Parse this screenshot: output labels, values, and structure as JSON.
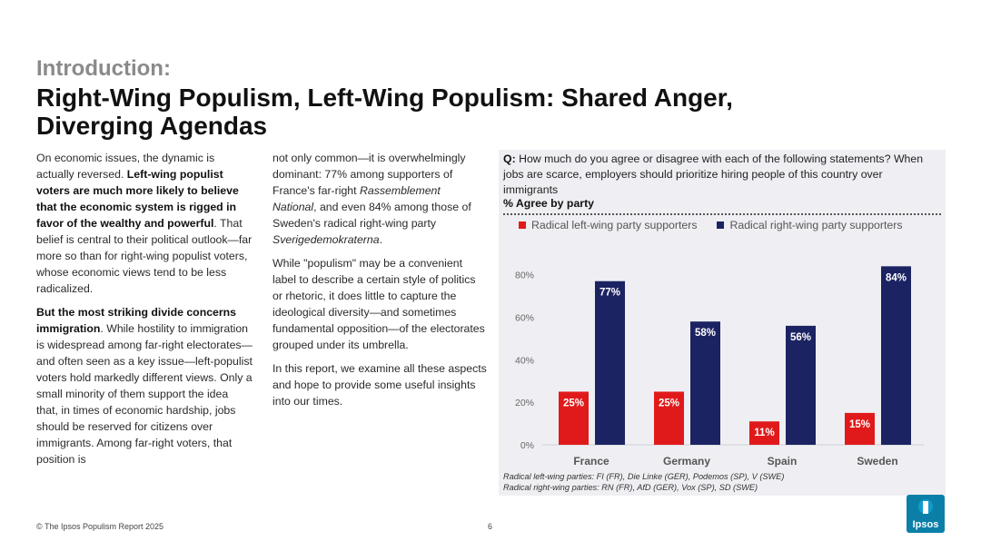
{
  "header": {
    "kicker": "Introduction:",
    "title": "Right-Wing Populism, Left-Wing Populism: Shared Anger, Diverging Agendas"
  },
  "body": {
    "c1p1_a": "On economic issues, the dynamic is actually reversed. ",
    "c1p1_b": "Left-wing populist voters are much more likely to believe that the economic system is rigged in favor of the wealthy and powerful",
    "c1p1_c": ". That belief is central to their political outlook—far more so than for right-wing populist voters, whose economic views tend to be less radicalized.",
    "c1p2_a": "But the most striking divide concerns immigration",
    "c1p2_b": ". While hostility to immigration is widespread among far-right electorates—and often seen as a key issue—left-populist voters hold markedly different views. Only a small minority of them support the idea that, in times of economic hardship, jobs should be reserved for citizens over immigrants. Among far-right voters, that position is",
    "c2p1_a": "not only common—it is overwhelmingly dominant: 77% among supporters of France's far-right ",
    "c2p1_b": "Rassemblement National",
    "c2p1_c": ", and even 84% among those of Sweden's radical right-wing party ",
    "c2p1_d": "Sverigedemokraterna",
    "c2p1_e": ".",
    "c2p2": "While \"populism\" may be a convenient label to describe a certain style of politics or rhetoric, it does little to capture the ideological diversity—and sometimes fundamental opposition—of the electorates grouped under its umbrella.",
    "c2p3": "In this report, we examine all these aspects and hope to provide some useful insights into our times."
  },
  "panel": {
    "q_prefix": "Q:",
    "question": " How much do you agree or disagree with each of the following statements? When jobs are scarce, employers should prioritize hiring people of this country over immigrants",
    "subtitle": "% Agree by party",
    "note1": "Radical left-wing parties: FI (FR), Die Linke (GER), Podemos (SP), V (SWE)",
    "note2": "Radical right-wing parties: RN (FR), AfD (GER), Vox (SP), SD (SWE)"
  },
  "chart_data": {
    "type": "bar",
    "categories": [
      "France",
      "Germany",
      "Spain",
      "Sweden"
    ],
    "series": [
      {
        "name": "Radical left-wing party supporters",
        "color": "#e01a1a",
        "values": [
          25,
          25,
          11,
          15
        ]
      },
      {
        "name": "Radical right-wing party supporters",
        "color": "#1c2362",
        "values": [
          77,
          58,
          56,
          84
        ]
      }
    ],
    "yticks": [
      "0%",
      "20%",
      "40%",
      "60%",
      "80%"
    ],
    "ytick_values": [
      0,
      20,
      40,
      60,
      80
    ],
    "ylim": [
      0,
      85
    ],
    "value_suffix": "%",
    "grid": false,
    "legend": "top"
  },
  "footer": {
    "copyright": "© The Ipsos Populism Report 2025",
    "page": "6",
    "logo_text": "Ipsos"
  },
  "colors": {
    "left": "#e01a1a",
    "right": "#1c2362",
    "panel_bg": "#efeff3",
    "logo": "#0b7fa8"
  }
}
